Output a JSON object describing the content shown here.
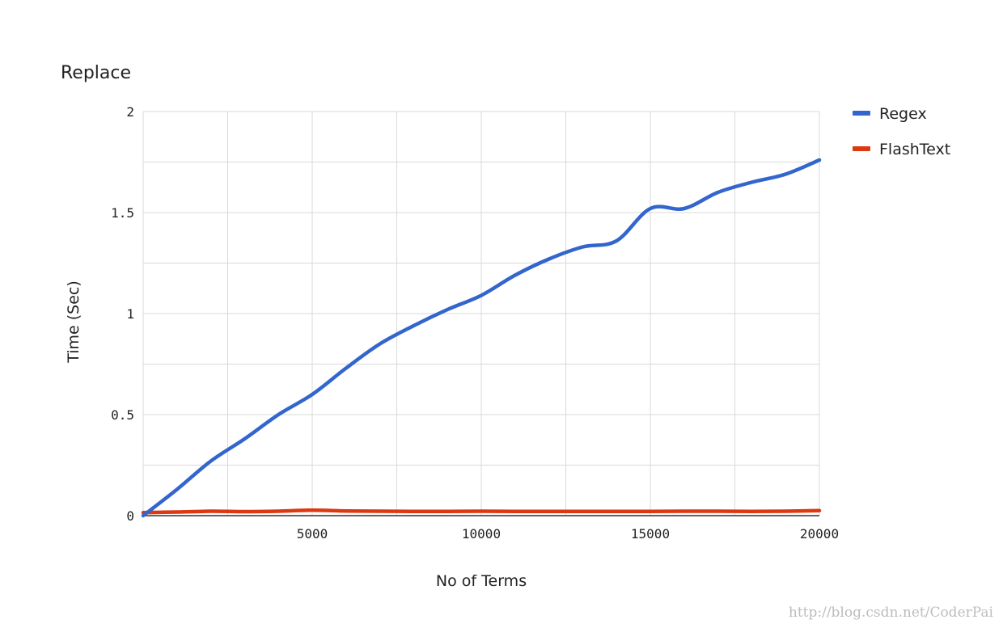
{
  "watermark": "http://blog.csdn.net/CoderPai",
  "colors": {
    "background": "#ffffff",
    "grid": "#d9d9d9",
    "axis": "#333333",
    "regex": "#3366cc",
    "flashtext": "#dc3912"
  },
  "chart_data": {
    "type": "line",
    "title": "Replace",
    "xlabel": "No of Terms",
    "ylabel": "Time (Sec)",
    "xlim": [
      0,
      20000
    ],
    "ylim": [
      0,
      2
    ],
    "xticks": [
      5000,
      10000,
      15000,
      20000
    ],
    "xtick_labels": [
      "5000",
      "10000",
      "15000",
      "20000"
    ],
    "yticks": [
      0,
      0.5,
      1,
      1.5,
      2
    ],
    "ytick_labels": [
      "0",
      "0.5",
      "1",
      "1.5",
      "2"
    ],
    "grid": true,
    "legend_position": "right-top",
    "series": [
      {
        "name": "Regex",
        "color": "#3366cc",
        "x": [
          0,
          1000,
          2000,
          3000,
          4000,
          5000,
          6000,
          7000,
          8000,
          9000,
          10000,
          11000,
          12000,
          13000,
          14000,
          15000,
          16000,
          17000,
          18000,
          19000,
          20000
        ],
        "y": [
          0.0,
          0.13,
          0.27,
          0.38,
          0.5,
          0.6,
          0.73,
          0.85,
          0.94,
          1.02,
          1.09,
          1.19,
          1.27,
          1.33,
          1.36,
          1.52,
          1.52,
          1.6,
          1.65,
          1.69,
          1.76
        ]
      },
      {
        "name": "FlashText",
        "color": "#dc3912",
        "x": [
          0,
          1000,
          2000,
          3000,
          4000,
          5000,
          6000,
          7000,
          8000,
          9000,
          10000,
          11000,
          12000,
          13000,
          14000,
          15000,
          16000,
          17000,
          18000,
          19000,
          20000
        ],
        "y": [
          0.015,
          0.018,
          0.022,
          0.02,
          0.022,
          0.027,
          0.023,
          0.022,
          0.021,
          0.021,
          0.022,
          0.021,
          0.021,
          0.021,
          0.021,
          0.021,
          0.022,
          0.022,
          0.021,
          0.022,
          0.025
        ]
      }
    ]
  }
}
